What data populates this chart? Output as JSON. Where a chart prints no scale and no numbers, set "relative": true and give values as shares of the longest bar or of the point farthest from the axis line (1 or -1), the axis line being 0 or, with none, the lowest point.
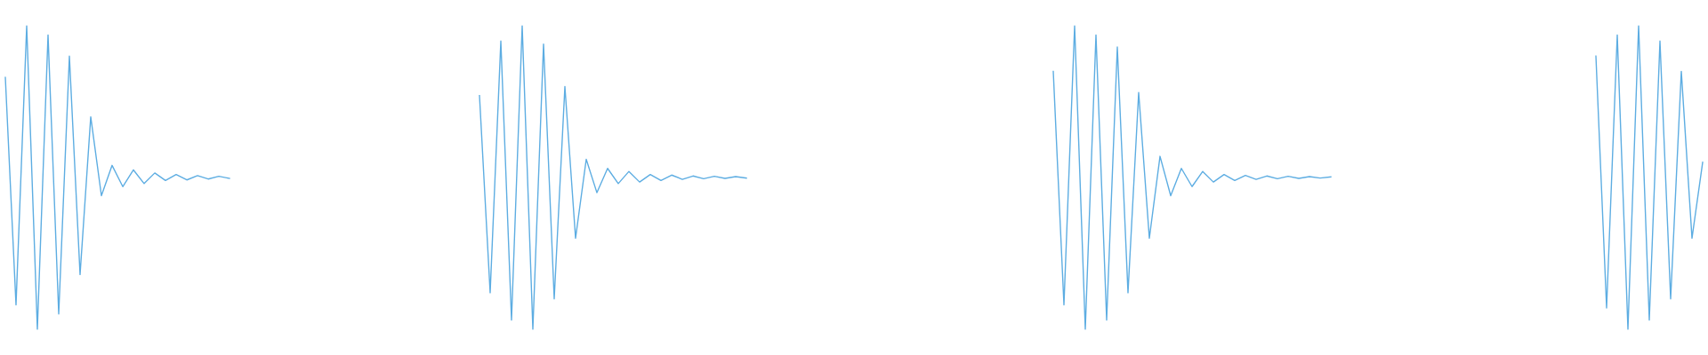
{
  "chart_data": [
    {
      "type": "line",
      "relative": true,
      "color": "#5dade2",
      "categories": [
        null,
        null,
        null,
        null,
        null,
        null,
        null,
        null,
        null,
        null,
        null,
        null,
        null,
        null,
        null,
        null,
        null,
        null,
        null,
        null,
        null,
        null
      ],
      "values": [
        0.83,
        0.08,
        1,
        0,
        0.97,
        0.05,
        0.9,
        0.18,
        0.7,
        0.44,
        0.54,
        0.47,
        0.525,
        0.48,
        0.515,
        0.49,
        0.51,
        0.492,
        0.506,
        0.495,
        0.504,
        0.497
      ]
    },
    {
      "type": "line",
      "relative": true,
      "color": "#5dade2",
      "categories": [
        null,
        null,
        null,
        null,
        null,
        null,
        null,
        null,
        null,
        null,
        null,
        null,
        null,
        null,
        null,
        null,
        null,
        null,
        null,
        null,
        null,
        null,
        null,
        null,
        null,
        null
      ],
      "values": [
        0.77,
        0.12,
        0.95,
        0.03,
        1,
        0,
        0.94,
        0.1,
        0.8,
        0.3,
        0.56,
        0.45,
        0.53,
        0.48,
        0.52,
        0.485,
        0.51,
        0.49,
        0.508,
        0.494,
        0.505,
        0.496,
        0.504,
        0.497,
        0.503,
        0.498
      ]
    },
    {
      "type": "line",
      "relative": true,
      "color": "#5dade2",
      "categories": [
        null,
        null,
        null,
        null,
        null,
        null,
        null,
        null,
        null,
        null,
        null,
        null,
        null,
        null,
        null,
        null,
        null,
        null,
        null,
        null,
        null,
        null,
        null,
        null,
        null,
        null,
        null
      ],
      "values": [
        0.85,
        0.08,
        1,
        0,
        0.97,
        0.03,
        0.93,
        0.12,
        0.78,
        0.3,
        0.57,
        0.44,
        0.53,
        0.47,
        0.52,
        0.485,
        0.51,
        0.49,
        0.507,
        0.494,
        0.505,
        0.496,
        0.504,
        0.497,
        0.503,
        0.498,
        0.502
      ]
    },
    {
      "type": "line",
      "relative": true,
      "color": "#5dade2",
      "categories": [
        null,
        null,
        null,
        null,
        null,
        null,
        null,
        null,
        null,
        null,
        null
      ],
      "values": [
        0.9,
        0.07,
        0.97,
        0,
        1,
        0.03,
        0.95,
        0.1,
        0.85,
        0.3,
        0.55
      ]
    }
  ]
}
